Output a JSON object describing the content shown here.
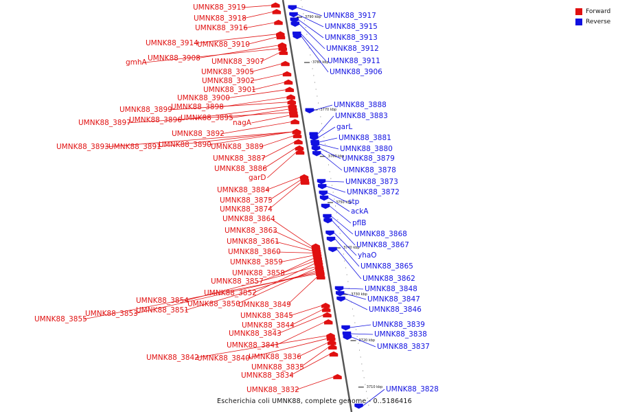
{
  "legend": {
    "forward_label": "Forward",
    "reverse_label": "Reverse",
    "forward_color": "#e01010",
    "reverse_color": "#1010e0"
  },
  "caption": "Escherichia coli UMNK88, complete genome - 0..5186416",
  "tick_marks": [
    {
      "label": "3790 kbp",
      "pos": 0.04
    },
    {
      "label": "3780 kbp",
      "pos": 0.15
    },
    {
      "label": "3770 kbp",
      "pos": 0.265
    },
    {
      "label": "3760 kbp",
      "pos": 0.378
    },
    {
      "label": "3750 kbp",
      "pos": 0.49
    },
    {
      "label": "3740 kbp",
      "pos": 0.6
    },
    {
      "label": "3730 kbp",
      "pos": 0.713
    },
    {
      "label": "3720 kbp",
      "pos": 0.825
    },
    {
      "label": "3710 kbp",
      "pos": 0.938
    }
  ],
  "forward_genes": [
    {
      "label": "UMNK88_3919",
      "pos": 0.013
    },
    {
      "label": "UMNK88_3918",
      "pos": 0.029
    },
    {
      "label": "UMNK88_3916",
      "pos": 0.055
    },
    {
      "label": "UMNK88_3914",
      "pos": 0.083
    },
    {
      "label": "UMNK88_3910",
      "pos": 0.09
    },
    {
      "label": "gmhA",
      "pos": 0.118
    },
    {
      "label": "UMNK88_3908",
      "pos": 0.11
    },
    {
      "label": "UMNK88_3907",
      "pos": 0.128
    },
    {
      "label": "UMNK88_3905",
      "pos": 0.155
    },
    {
      "label": "UMNK88_3902",
      "pos": 0.18
    },
    {
      "label": "UMNK88_3901",
      "pos": 0.2
    },
    {
      "label": "UMNK88_3900",
      "pos": 0.218
    },
    {
      "label": "UMNK88_3898",
      "pos": 0.236
    },
    {
      "label": "UMNK88_3899",
      "pos": 0.248
    },
    {
      "label": "UMNK88_3896",
      "pos": 0.258
    },
    {
      "label": "UMNK88_3895",
      "pos": 0.265
    },
    {
      "label": "UMNK88_3897",
      "pos": 0.273
    },
    {
      "label": "nagA",
      "pos": 0.28
    },
    {
      "label": "UMNK88_3892",
      "pos": 0.296
    },
    {
      "label": "UMNK88_3893",
      "pos": 0.32
    },
    {
      "label": "UMNK88_3891",
      "pos": 0.32
    },
    {
      "label": "UMNK88_3890",
      "pos": 0.32
    },
    {
      "label": "UMNK88_3889",
      "pos": 0.33
    },
    {
      "label": "UMNK88_3887",
      "pos": 0.345
    },
    {
      "label": "UMNK88_3886",
      "pos": 0.36
    },
    {
      "label": "garD",
      "pos": 0.37
    },
    {
      "label": "UMNK88_3884",
      "pos": 0.43
    },
    {
      "label": "UMNK88_3875",
      "pos": 0.437
    },
    {
      "label": "UMNK88_3874",
      "pos": 0.443
    },
    {
      "label": "UMNK88_3864",
      "pos": 0.598
    },
    {
      "label": "UMNK88_3863",
      "pos": 0.603
    },
    {
      "label": "UMNK88_3861",
      "pos": 0.609
    },
    {
      "label": "UMNK88_3860",
      "pos": 0.614
    },
    {
      "label": "UMNK88_3859",
      "pos": 0.62
    },
    {
      "label": "UMNK88_3858",
      "pos": 0.627
    },
    {
      "label": "UMNK88_3857",
      "pos": 0.634
    },
    {
      "label": "UMNK88_3852",
      "pos": 0.64
    },
    {
      "label": "UMNK88_3854",
      "pos": 0.648
    },
    {
      "label": "UMNK88_3850",
      "pos": 0.652
    },
    {
      "label": "UMNK88_3851",
      "pos": 0.658
    },
    {
      "label": "UMNK88_3853",
      "pos": 0.662
    },
    {
      "label": "UMNK88_3855",
      "pos": 0.665
    },
    {
      "label": "UMNK88_3849",
      "pos": 0.673
    },
    {
      "label": "UMNK88_3845",
      "pos": 0.742
    },
    {
      "label": "UMNK88_3844",
      "pos": 0.752
    },
    {
      "label": "UMNK88_3843",
      "pos": 0.765
    },
    {
      "label": "UMNK88_3841",
      "pos": 0.782
    },
    {
      "label": "UMNK88_3842",
      "pos": 0.815
    },
    {
      "label": "UMNK88_3840",
      "pos": 0.822
    },
    {
      "label": "UMNK88_3836",
      "pos": 0.832
    },
    {
      "label": "UMNK88_3835",
      "pos": 0.843
    },
    {
      "label": "UMNK88_3834",
      "pos": 0.86
    },
    {
      "label": "UMNK88_3832",
      "pos": 0.915
    }
  ],
  "reverse_genes": [
    {
      "label": "UMNK88_3917",
      "pos": 0.018
    },
    {
      "label": "UMNK88_3915",
      "pos": 0.035
    },
    {
      "label": "UMNK88_3913",
      "pos": 0.048
    },
    {
      "label": "UMNK88_3912",
      "pos": 0.058
    },
    {
      "label": "UMNK88_3911",
      "pos": 0.082
    },
    {
      "label": "UMNK88_3906",
      "pos": 0.088
    },
    {
      "label": "UMNK88_3888",
      "pos": 0.268
    },
    {
      "label": "UMNK88_3883",
      "pos": 0.326
    },
    {
      "label": "garL",
      "pos": 0.334
    },
    {
      "label": "UMNK88_3881",
      "pos": 0.345
    },
    {
      "label": "UMNK88_3880",
      "pos": 0.35
    },
    {
      "label": "UMNK88_3879",
      "pos": 0.36
    },
    {
      "label": "UMNK88_3878",
      "pos": 0.372
    },
    {
      "label": "UMNK88_3873",
      "pos": 0.44
    },
    {
      "label": "UMNK88_3872",
      "pos": 0.452
    },
    {
      "label": "stp",
      "pos": 0.468
    },
    {
      "label": "ackA",
      "pos": 0.48
    },
    {
      "label": "pflB",
      "pos": 0.5
    },
    {
      "label": "UMNK88_3868",
      "pos": 0.525
    },
    {
      "label": "UMNK88_3867",
      "pos": 0.535
    },
    {
      "label": "yhaO",
      "pos": 0.565
    },
    {
      "label": "UMNK88_3865",
      "pos": 0.58
    },
    {
      "label": "UMNK88_3862",
      "pos": 0.605
    },
    {
      "label": "UMNK88_3848",
      "pos": 0.7
    },
    {
      "label": "UMNK88_3847",
      "pos": 0.712
    },
    {
      "label": "UMNK88_3846",
      "pos": 0.725
    },
    {
      "label": "UMNK88_3839",
      "pos": 0.795
    },
    {
      "label": "UMNK88_3838",
      "pos": 0.81
    },
    {
      "label": "UMNK88_3837",
      "pos": 0.818
    },
    {
      "label": "UMNK88_3828",
      "pos": 0.985
    }
  ]
}
